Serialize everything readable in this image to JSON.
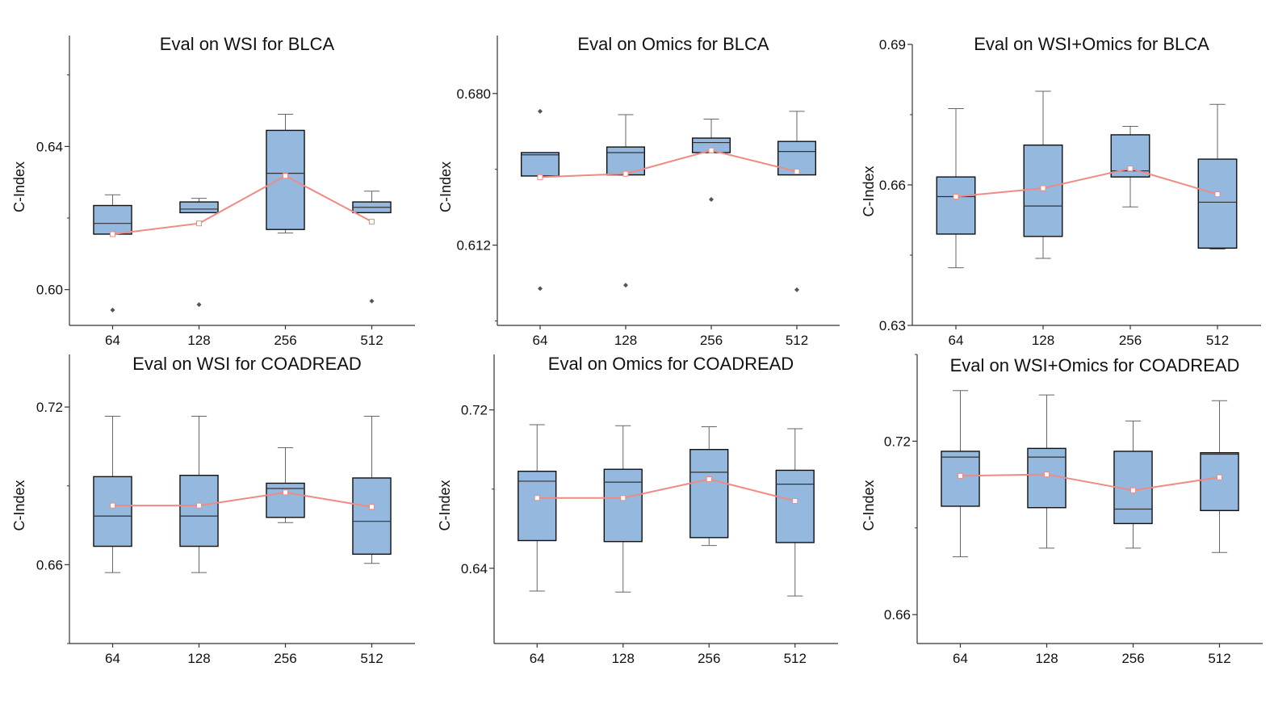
{
  "style": {
    "box_fill": "#94b8de",
    "box_stroke": "#111111",
    "median_stroke": "#333333",
    "whisker_stroke": "#666666",
    "mean_line": "#f08a84",
    "mean_marker": "#f08a84",
    "outlier": "#555555",
    "axis": "#333333"
  },
  "chart_data": [
    {
      "type": "box",
      "title": "Eval on WSI for BLCA",
      "xlabel": "",
      "ylabel": "C-Index",
      "categories": [
        "64",
        "128",
        "256",
        "512"
      ],
      "ylim": [
        0.59,
        0.671
      ],
      "yticks": [
        0.6,
        0.64
      ],
      "ytick_labels": [
        "0.60",
        "0.64"
      ],
      "minor_ticks": true,
      "boxes": [
        {
          "whisker_low": 0.6155,
          "q1": 0.6155,
          "median": 0.6185,
          "q3": 0.6235,
          "whisker_high": 0.6265,
          "mean": 0.6155,
          "outliers": [
            0.5943
          ]
        },
        {
          "whisker_low": 0.6215,
          "q1": 0.6215,
          "median": 0.6225,
          "q3": 0.6245,
          "whisker_high": 0.6255,
          "mean": 0.6185,
          "outliers": [
            0.5958
          ]
        },
        {
          "whisker_low": 0.6158,
          "q1": 0.6168,
          "median": 0.6325,
          "q3": 0.6445,
          "whisker_high": 0.649,
          "mean": 0.6318,
          "outliers": []
        },
        {
          "whisker_low": 0.6215,
          "q1": 0.6215,
          "median": 0.623,
          "q3": 0.6245,
          "whisker_high": 0.6275,
          "mean": 0.619,
          "outliers": [
            0.5968
          ]
        }
      ]
    },
    {
      "type": "box",
      "title": "Eval on Omics for BLCA",
      "xlabel": "",
      "ylabel": "C-Index",
      "categories": [
        "64",
        "128",
        "256",
        "512"
      ],
      "ylim": [
        0.576,
        0.706
      ],
      "yticks": [
        0.612,
        0.68
      ],
      "ytick_labels": [
        "0.612",
        "0.680"
      ],
      "minor_ticks": true,
      "boxes": [
        {
          "whisker_low": 0.643,
          "q1": 0.643,
          "median": 0.6525,
          "q3": 0.6535,
          "whisker_high": 0.6535,
          "mean": 0.6425,
          "outliers": [
            0.672,
            0.5925
          ]
        },
        {
          "whisker_low": 0.6435,
          "q1": 0.6435,
          "median": 0.6535,
          "q3": 0.656,
          "whisker_high": 0.6705,
          "mean": 0.644,
          "outliers": [
            0.594
          ]
        },
        {
          "whisker_low": 0.6535,
          "q1": 0.6535,
          "median": 0.658,
          "q3": 0.66,
          "whisker_high": 0.6685,
          "mean": 0.6545,
          "outliers": [
            0.6325
          ]
        },
        {
          "whisker_low": 0.6435,
          "q1": 0.6435,
          "median": 0.654,
          "q3": 0.6585,
          "whisker_high": 0.672,
          "mean": 0.645,
          "outliers": [
            0.592
          ]
        }
      ]
    },
    {
      "type": "box",
      "title": "Eval on WSI+Omics for BLCA",
      "xlabel": "",
      "ylabel": "C-Index",
      "categories": [
        "64",
        "128",
        "256",
        "512"
      ],
      "ylim": [
        0.63,
        0.69
      ],
      "yticks": [
        0.63,
        0.66,
        0.69
      ],
      "ytick_labels": [
        "0.63",
        "0.66",
        "0.69"
      ],
      "minor_ticks": true,
      "boxes": [
        {
          "whisker_low": 0.6423,
          "q1": 0.6495,
          "median": 0.6575,
          "q3": 0.6617,
          "whisker_high": 0.6763,
          "mean": 0.6575,
          "outliers": []
        },
        {
          "whisker_low": 0.6443,
          "q1": 0.649,
          "median": 0.6555,
          "q3": 0.6685,
          "whisker_high": 0.68,
          "mean": 0.6593,
          "outliers": []
        },
        {
          "whisker_low": 0.6553,
          "q1": 0.6617,
          "median": 0.663,
          "q3": 0.6707,
          "whisker_high": 0.6725,
          "mean": 0.6635,
          "outliers": []
        },
        {
          "whisker_low": 0.6463,
          "q1": 0.6465,
          "median": 0.6563,
          "q3": 0.6655,
          "whisker_high": 0.6772,
          "mean": 0.658,
          "outliers": []
        }
      ]
    },
    {
      "type": "box",
      "title": "Eval on WSI for COADREAD",
      "xlabel": "",
      "ylabel": "C-Index",
      "categories": [
        "64",
        "128",
        "256",
        "512"
      ],
      "ylim": [
        0.63,
        0.74
      ],
      "yticks": [
        0.66,
        0.72
      ],
      "ytick_labels": [
        "0.66",
        "0.72"
      ],
      "minor_ticks": true,
      "boxes": [
        {
          "whisker_low": 0.657,
          "q1": 0.667,
          "median": 0.6785,
          "q3": 0.6935,
          "whisker_high": 0.7165,
          "mean": 0.6825,
          "outliers": []
        },
        {
          "whisker_low": 0.657,
          "q1": 0.667,
          "median": 0.6785,
          "q3": 0.694,
          "whisker_high": 0.7165,
          "mean": 0.6825,
          "outliers": []
        },
        {
          "whisker_low": 0.676,
          "q1": 0.678,
          "median": 0.689,
          "q3": 0.691,
          "whisker_high": 0.7045,
          "mean": 0.6875,
          "outliers": []
        },
        {
          "whisker_low": 0.6605,
          "q1": 0.664,
          "median": 0.6765,
          "q3": 0.693,
          "whisker_high": 0.7165,
          "mean": 0.682,
          "outliers": []
        }
      ]
    },
    {
      "type": "box",
      "title": "Eval on Omics for COADREAD",
      "xlabel": "",
      "ylabel": "C-Index",
      "categories": [
        "64",
        "128",
        "256",
        "512"
      ],
      "ylim": [
        0.602,
        0.748
      ],
      "yticks": [
        0.64,
        0.72
      ],
      "ytick_labels": [
        "0.64",
        "0.72"
      ],
      "minor_ticks": true,
      "boxes": [
        {
          "whisker_low": 0.6285,
          "q1": 0.654,
          "median": 0.684,
          "q3": 0.689,
          "whisker_high": 0.7125,
          "mean": 0.6755,
          "outliers": []
        },
        {
          "whisker_low": 0.628,
          "q1": 0.6535,
          "median": 0.6835,
          "q3": 0.69,
          "whisker_high": 0.712,
          "mean": 0.6755,
          "outliers": []
        },
        {
          "whisker_low": 0.6515,
          "q1": 0.6555,
          "median": 0.6885,
          "q3": 0.7,
          "whisker_high": 0.7115,
          "mean": 0.685,
          "outliers": []
        },
        {
          "whisker_low": 0.626,
          "q1": 0.653,
          "median": 0.6825,
          "q3": 0.6895,
          "whisker_high": 0.7105,
          "mean": 0.674,
          "outliers": []
        }
      ]
    },
    {
      "type": "box",
      "title": "Eval on WSI+Omics for COADREAD",
      "xlabel": "",
      "ylabel": "C-Index",
      "categories": [
        "64",
        "128",
        "256",
        "512"
      ],
      "ylim": [
        0.65,
        0.75
      ],
      "yticks": [
        0.66,
        0.72
      ],
      "ytick_labels": [
        "0.66",
        "0.72"
      ],
      "minor_ticks": true,
      "boxes": [
        {
          "whisker_low": 0.68,
          "q1": 0.6975,
          "median": 0.7145,
          "q3": 0.7165,
          "whisker_high": 0.7375,
          "mean": 0.708,
          "outliers": []
        },
        {
          "whisker_low": 0.683,
          "q1": 0.697,
          "median": 0.7145,
          "q3": 0.7175,
          "whisker_high": 0.736,
          "mean": 0.7085,
          "outliers": []
        },
        {
          "whisker_low": 0.683,
          "q1": 0.6915,
          "median": 0.6965,
          "q3": 0.7165,
          "whisker_high": 0.727,
          "mean": 0.703,
          "outliers": []
        },
        {
          "whisker_low": 0.6815,
          "q1": 0.696,
          "median": 0.7155,
          "q3": 0.716,
          "whisker_high": 0.734,
          "mean": 0.7075,
          "outliers": []
        }
      ]
    }
  ]
}
